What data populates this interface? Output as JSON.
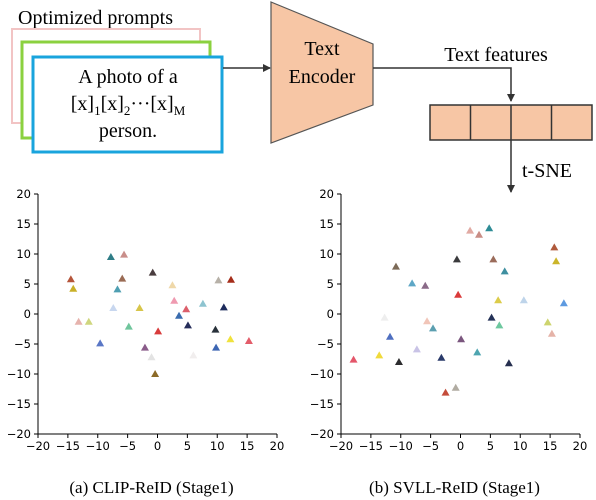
{
  "diagram": {
    "prompts_title": "Optimized prompts",
    "prompt_line1": "A photo of a",
    "prompt_x": "[x]",
    "prompt_sub1": "1",
    "prompt_sub2": "2",
    "prompt_dots": "···",
    "prompt_subM": "M",
    "prompt_line3": "person.",
    "encoder_line1": "Text",
    "encoder_line2": "Encoder",
    "features_label": "Text features",
    "tsne_label": "t-SNE"
  },
  "colors": {
    "encoder_fill": "#f7c6a5",
    "feature_fill": "#f7c6a5",
    "prompt_card_back": "#f2c4c4",
    "prompt_card_mid": "#8bd13f",
    "prompt_card_front": "#19a4dd"
  },
  "chart_data": [
    {
      "type": "scatter",
      "caption": "(a) CLIP-ReID (Stage1)",
      "xlim": [
        -20,
        20
      ],
      "ylim": [
        -20,
        20
      ],
      "xticks": [
        -20,
        -15,
        -10,
        -5,
        0,
        5,
        10,
        15,
        20
      ],
      "yticks": [
        -20,
        -15,
        -10,
        -5,
        0,
        5,
        10,
        15,
        20
      ],
      "grid": false,
      "points": [
        {
          "x": -14.5,
          "y": 5.8,
          "color": "#b5553a"
        },
        {
          "x": -14.1,
          "y": 4.2,
          "color": "#c9b028"
        },
        {
          "x": -13.2,
          "y": -1.3,
          "color": "#e6b3ad"
        },
        {
          "x": -11.5,
          "y": -1.3,
          "color": "#cfd67e"
        },
        {
          "x": -9.6,
          "y": -4.9,
          "color": "#5a77c6"
        },
        {
          "x": -7.8,
          "y": 9.5,
          "color": "#2f7d87"
        },
        {
          "x": -7.4,
          "y": 1.0,
          "color": "#c8d7ef"
        },
        {
          "x": -6.7,
          "y": 4.1,
          "color": "#4f9fb2"
        },
        {
          "x": -5.9,
          "y": 5.9,
          "color": "#9a6b54"
        },
        {
          "x": -5.6,
          "y": 9.9,
          "color": "#c98e8a"
        },
        {
          "x": -4.8,
          "y": -2.1,
          "color": "#6fc59c"
        },
        {
          "x": -3.0,
          "y": 1.0,
          "color": "#d7c54a"
        },
        {
          "x": -2.1,
          "y": -5.6,
          "color": "#8a5c8a"
        },
        {
          "x": -1.0,
          "y": -7.2,
          "color": "#e3e3e3"
        },
        {
          "x": -0.8,
          "y": 6.9,
          "color": "#4a3d3f"
        },
        {
          "x": -0.4,
          "y": -10.0,
          "color": "#8c6a28"
        },
        {
          "x": 0.1,
          "y": -2.9,
          "color": "#d83c3c"
        },
        {
          "x": 2.5,
          "y": 4.8,
          "color": "#efd8a9"
        },
        {
          "x": 2.8,
          "y": 2.2,
          "color": "#ef9ab0"
        },
        {
          "x": 3.6,
          "y": -0.3,
          "color": "#3a6cae"
        },
        {
          "x": 4.8,
          "y": 0.8,
          "color": "#dc5f6b"
        },
        {
          "x": 5.1,
          "y": -1.9,
          "color": "#262d5a"
        },
        {
          "x": 6.0,
          "y": -6.9,
          "color": "#f1eeee"
        },
        {
          "x": 7.6,
          "y": 1.7,
          "color": "#8ec4d0"
        },
        {
          "x": 9.7,
          "y": -2.6,
          "color": "#28313a"
        },
        {
          "x": 9.8,
          "y": -5.6,
          "color": "#3d66b3"
        },
        {
          "x": 10.2,
          "y": 5.6,
          "color": "#b7b1a8"
        },
        {
          "x": 11.1,
          "y": 1.1,
          "color": "#1d2b5c"
        },
        {
          "x": 12.2,
          "y": -4.2,
          "color": "#f0e23c"
        },
        {
          "x": 12.3,
          "y": 5.7,
          "color": "#a52d1a"
        },
        {
          "x": 15.3,
          "y": -4.5,
          "color": "#e35d6a"
        }
      ]
    },
    {
      "type": "scatter",
      "caption": "(b) SVLL-ReID (Stage1)",
      "xlim": [
        -20,
        20
      ],
      "ylim": [
        -20,
        20
      ],
      "xticks": [
        -20,
        -15,
        -10,
        -5,
        0,
        5,
        10,
        15,
        20
      ],
      "yticks": [
        -20,
        -15,
        -10,
        -5,
        0,
        5,
        10,
        15,
        20
      ],
      "grid": false,
      "points": [
        {
          "x": -17.9,
          "y": -7.6,
          "color": "#e4566a"
        },
        {
          "x": -13.6,
          "y": -6.9,
          "color": "#f0da3c"
        },
        {
          "x": -12.7,
          "y": -0.6,
          "color": "#eeeeee"
        },
        {
          "x": -11.8,
          "y": -3.8,
          "color": "#4f6fc0"
        },
        {
          "x": -10.8,
          "y": 7.9,
          "color": "#7c6a57"
        },
        {
          "x": -10.3,
          "y": -8.0,
          "color": "#2c2c2e"
        },
        {
          "x": -8.1,
          "y": 5.1,
          "color": "#5ea7c6"
        },
        {
          "x": -7.3,
          "y": -5.9,
          "color": "#c9c3e6"
        },
        {
          "x": -5.9,
          "y": 4.7,
          "color": "#8a6a88"
        },
        {
          "x": -5.6,
          "y": -1.2,
          "color": "#f1c5b8"
        },
        {
          "x": -4.6,
          "y": -2.4,
          "color": "#5c9fb0"
        },
        {
          "x": -3.2,
          "y": -7.3,
          "color": "#2a3a6a"
        },
        {
          "x": -2.5,
          "y": -13.1,
          "color": "#c44c3a"
        },
        {
          "x": -0.8,
          "y": -12.3,
          "color": "#b1aca2"
        },
        {
          "x": -0.6,
          "y": 9.1,
          "color": "#3a3a3c"
        },
        {
          "x": -0.4,
          "y": 3.2,
          "color": "#da3b3b"
        },
        {
          "x": 0.1,
          "y": -4.2,
          "color": "#7a567e"
        },
        {
          "x": 1.6,
          "y": 13.9,
          "color": "#e1aaa3"
        },
        {
          "x": 2.8,
          "y": -6.4,
          "color": "#4ea5b0"
        },
        {
          "x": 3.1,
          "y": 13.2,
          "color": "#c98d85"
        },
        {
          "x": 4.8,
          "y": 14.3,
          "color": "#2e8c96"
        },
        {
          "x": 5.2,
          "y": -0.6,
          "color": "#243157"
        },
        {
          "x": 5.5,
          "y": 9.1,
          "color": "#9b6c5b"
        },
        {
          "x": 6.3,
          "y": 2.3,
          "color": "#dccc4a"
        },
        {
          "x": 6.5,
          "y": -1.9,
          "color": "#6ec89f"
        },
        {
          "x": 7.4,
          "y": 7.1,
          "color": "#3e8fa0"
        },
        {
          "x": 8.1,
          "y": -8.2,
          "color": "#262f4f"
        },
        {
          "x": 10.6,
          "y": 2.3,
          "color": "#bed4ea"
        },
        {
          "x": 14.6,
          "y": -1.4,
          "color": "#cdd46e"
        },
        {
          "x": 15.3,
          "y": -3.3,
          "color": "#e5b3a8"
        },
        {
          "x": 15.7,
          "y": 11.1,
          "color": "#b05a3c"
        },
        {
          "x": 16.0,
          "y": 8.8,
          "color": "#cbb52a"
        },
        {
          "x": 17.3,
          "y": 1.8,
          "color": "#5e9ae0"
        }
      ]
    }
  ]
}
